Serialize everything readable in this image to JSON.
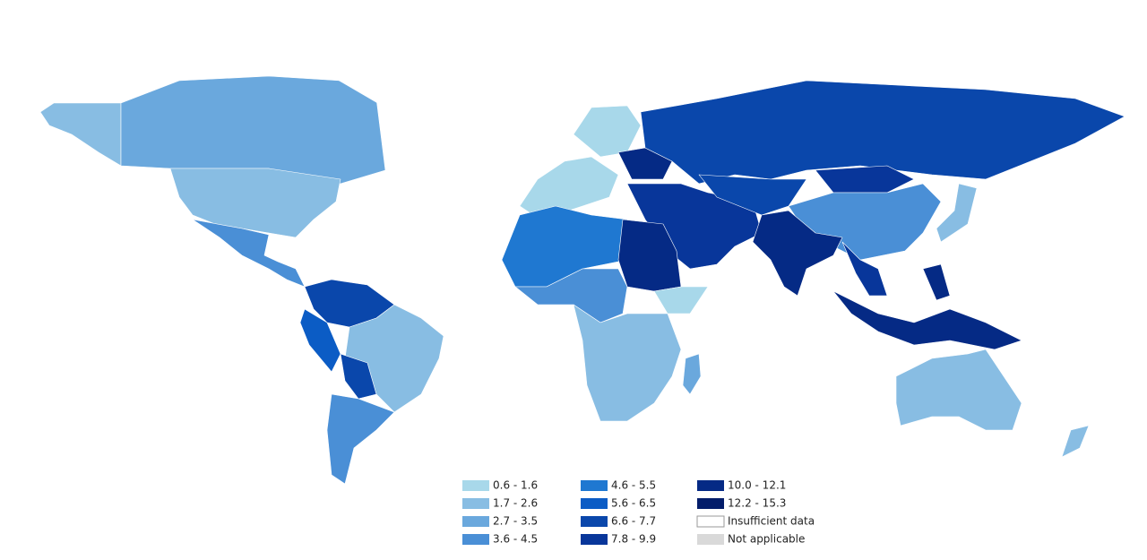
{
  "legend": {
    "items": [
      {
        "label": "0.6 - 1.6",
        "color": "#a8d8ea"
      },
      {
        "label": "1.7 - 2.6",
        "color": "#88bde3"
      },
      {
        "label": "2.7 - 3.5",
        "color": "#6aa8dd"
      },
      {
        "label": "3.6 - 4.5",
        "color": "#4a8fd6"
      },
      {
        "label": "4.6 - 5.5",
        "color": "#1f78d1"
      },
      {
        "label": "5.6 - 6.5",
        "color": "#0b5cc5"
      },
      {
        "label": "6.6 - 7.7",
        "color": "#0a47ab"
      },
      {
        "label": "7.8 - 9.9",
        "color": "#08369a"
      },
      {
        "label": "10.0 - 12.1",
        "color": "#052a85"
      },
      {
        "label": "12.2 - 15.3",
        "color": "#031d6a"
      },
      {
        "label": "Insufficient data",
        "color": "#ffffff"
      },
      {
        "label": "Not applicable",
        "color": "#d9d9d9"
      }
    ]
  }
}
